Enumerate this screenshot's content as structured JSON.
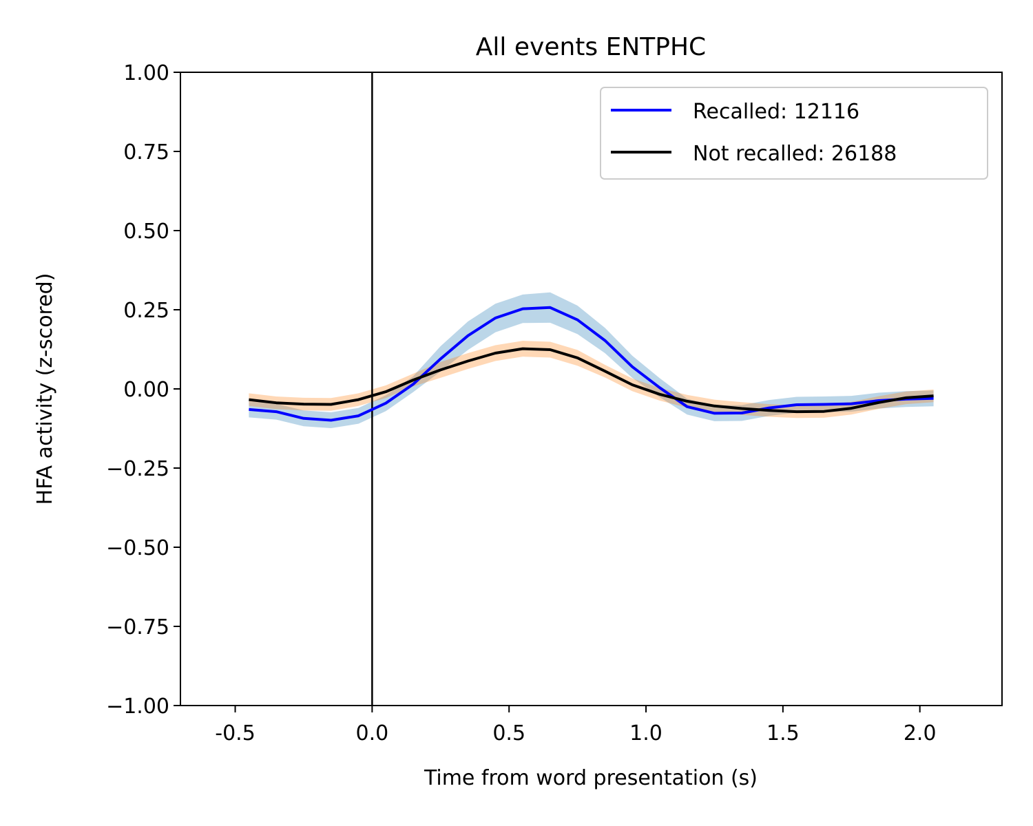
{
  "chart_data": {
    "type": "line",
    "title": "All events ENTPHC",
    "xlabel": "Time from word presentation (s)",
    "ylabel": "HFA activity (z-scored)",
    "xlim": [
      -0.7,
      2.3
    ],
    "ylim": [
      -1.0,
      1.0
    ],
    "x_ticks": [
      -0.5,
      0.0,
      0.5,
      1.0,
      1.5,
      2.0
    ],
    "x_tick_labels": [
      "-0.5",
      "0.0",
      "0.5",
      "1.0",
      "1.5",
      "2.0"
    ],
    "y_ticks": [
      1.0,
      0.75,
      0.5,
      0.25,
      0.0,
      -0.25,
      -0.5,
      -0.75,
      -1.0
    ],
    "y_tick_labels": [
      "1.00",
      "0.75",
      "0.50",
      "0.25",
      "0.00",
      "−0.25",
      "−0.50",
      "−0.75",
      "−1.00"
    ],
    "grid": false,
    "legend_position": "top-right",
    "vline_x": 0.0,
    "x": [
      -0.45,
      -0.35,
      -0.25,
      -0.15,
      -0.05,
      0.05,
      0.15,
      0.25,
      0.35,
      0.45,
      0.55,
      0.65,
      0.75,
      0.85,
      0.95,
      1.05,
      1.15,
      1.25,
      1.35,
      1.45,
      1.55,
      1.65,
      1.75,
      1.85,
      1.95,
      2.05
    ],
    "series": [
      {
        "name": "Recalled: 12116",
        "color": "#0000ff",
        "band_color": "#1f77b4",
        "values": [
          -0.065,
          -0.072,
          -0.093,
          -0.099,
          -0.085,
          -0.045,
          0.015,
          0.095,
          0.168,
          0.224,
          0.253,
          0.257,
          0.218,
          0.153,
          0.07,
          0.004,
          -0.056,
          -0.077,
          -0.076,
          -0.06,
          -0.05,
          -0.049,
          -0.047,
          -0.037,
          -0.032,
          -0.03
        ],
        "error": [
          0.025,
          0.025,
          0.025,
          0.025,
          0.025,
          0.025,
          0.025,
          0.04,
          0.045,
          0.045,
          0.045,
          0.048,
          0.045,
          0.04,
          0.035,
          0.03,
          0.025,
          0.025,
          0.025,
          0.025,
          0.025,
          0.025,
          0.025,
          0.025,
          0.025,
          0.025
        ]
      },
      {
        "name": "Not recalled: 26188",
        "color": "#000000",
        "band_color": "#ff7f0e",
        "values": [
          -0.034,
          -0.044,
          -0.048,
          -0.049,
          -0.034,
          -0.009,
          0.028,
          0.06,
          0.088,
          0.113,
          0.127,
          0.124,
          0.098,
          0.056,
          0.013,
          -0.017,
          -0.039,
          -0.054,
          -0.062,
          -0.068,
          -0.072,
          -0.071,
          -0.061,
          -0.043,
          -0.028,
          -0.022
        ],
        "error": [
          0.02,
          0.02,
          0.02,
          0.02,
          0.02,
          0.02,
          0.02,
          0.025,
          0.025,
          0.025,
          0.025,
          0.025,
          0.025,
          0.02,
          0.02,
          0.02,
          0.02,
          0.02,
          0.02,
          0.02,
          0.02,
          0.02,
          0.02,
          0.02,
          0.02,
          0.02
        ]
      }
    ]
  }
}
